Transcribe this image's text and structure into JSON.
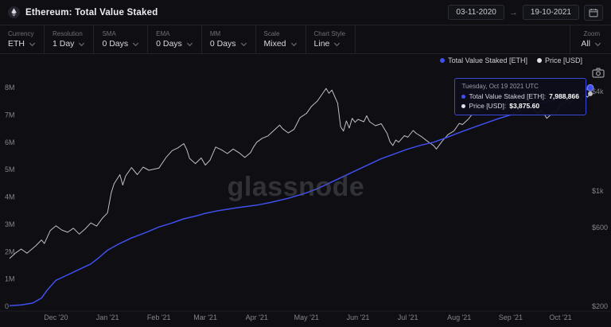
{
  "header": {
    "title": "Ethereum: Total Value Staked",
    "date_start": "03-11-2020",
    "date_end": "19-10-2021",
    "arrow": "→"
  },
  "toolbar": {
    "controls": [
      {
        "label": "Currency",
        "value": "ETH"
      },
      {
        "label": "Resolution",
        "value": "1 Day"
      },
      {
        "label": "SMA",
        "value": "0 Days"
      },
      {
        "label": "EMA",
        "value": "0 Days"
      },
      {
        "label": "MM",
        "value": "0 Days"
      },
      {
        "label": "Scale",
        "value": "Mixed"
      },
      {
        "label": "Chart Style",
        "value": "Line"
      }
    ],
    "zoom": {
      "label": "Zoom",
      "value": "All"
    }
  },
  "legend": [
    {
      "label": "Total Value Staked [ETH]",
      "color": "#4050ee"
    },
    {
      "label": "Price [USD]",
      "color": "#e2e2e8"
    }
  ],
  "tooltip": {
    "date": "Tuesday, Oct 19 2021 UTC",
    "rows": [
      {
        "label": "Total Value Staked [ETH]:",
        "value": "7,988,866",
        "color": "#4050ee"
      },
      {
        "label": "Price [USD]:",
        "value": "$3,875.60",
        "color": "#e2e2e8"
      }
    ]
  },
  "watermark": "glassnode",
  "chart_data": {
    "type": "line",
    "title": "Ethereum: Total Value Staked",
    "x_range": [
      "03-11-2020",
      "19-10-2021"
    ],
    "left_axis": {
      "label": "Total Value Staked [ETH]",
      "scale": "linear",
      "unit": "millions of ETH",
      "range_millions": [
        0,
        8.4
      ],
      "ticks": [
        {
          "label": "0",
          "value": 0
        },
        {
          "label": "1M",
          "value": 1
        },
        {
          "label": "2M",
          "value": 2
        },
        {
          "label": "3M",
          "value": 3
        },
        {
          "label": "4M",
          "value": 4
        },
        {
          "label": "5M",
          "value": 5
        },
        {
          "label": "6M",
          "value": 6
        },
        {
          "label": "7M",
          "value": 7
        },
        {
          "label": "8M",
          "value": 8
        }
      ]
    },
    "right_axis": {
      "label": "Price [USD]",
      "scale": "log",
      "range_usd": [
        200,
        5000
      ],
      "ticks": [
        {
          "label": "$200",
          "value": 200
        },
        {
          "label": "$600",
          "value": 600
        },
        {
          "label": "$1k",
          "value": 1000
        },
        {
          "label": "$4k",
          "value": 4000
        }
      ]
    },
    "x_ticks": [
      {
        "label": "Dec '20",
        "t": 0.08
      },
      {
        "label": "Jan '21",
        "t": 0.1686
      },
      {
        "label": "Feb '21",
        "t": 0.2571
      },
      {
        "label": "Mar '21",
        "t": 0.3371
      },
      {
        "label": "Apr '21",
        "t": 0.4257
      },
      {
        "label": "May '21",
        "t": 0.5114
      },
      {
        "label": "Jun '21",
        "t": 0.6
      },
      {
        "label": "Jul '21",
        "t": 0.6857
      },
      {
        "label": "Aug '21",
        "t": 0.7743
      },
      {
        "label": "Sep '21",
        "t": 0.8629
      },
      {
        "label": "Oct '21",
        "t": 0.9486
      }
    ],
    "series": [
      {
        "name": "Total Value Staked [ETH]",
        "axis": "left",
        "color": "#4050ee",
        "last_value_label": "7,988,866",
        "points": [
          [
            0,
            0.02
          ],
          [
            0.02,
            0.05
          ],
          [
            0.04,
            0.12
          ],
          [
            0.055,
            0.3
          ],
          [
            0.065,
            0.6
          ],
          [
            0.08,
            0.95
          ],
          [
            0.1,
            1.15
          ],
          [
            0.12,
            1.35
          ],
          [
            0.14,
            1.55
          ],
          [
            0.155,
            1.8
          ],
          [
            0.1686,
            2.05
          ],
          [
            0.19,
            2.3
          ],
          [
            0.21,
            2.5
          ],
          [
            0.235,
            2.7
          ],
          [
            0.2571,
            2.9
          ],
          [
            0.28,
            3.05
          ],
          [
            0.3,
            3.2
          ],
          [
            0.32,
            3.3
          ],
          [
            0.3371,
            3.4
          ],
          [
            0.36,
            3.5
          ],
          [
            0.39,
            3.6
          ],
          [
            0.4257,
            3.7
          ],
          [
            0.45,
            3.8
          ],
          [
            0.48,
            3.95
          ],
          [
            0.5114,
            4.15
          ],
          [
            0.53,
            4.3
          ],
          [
            0.55,
            4.5
          ],
          [
            0.57,
            4.7
          ],
          [
            0.585,
            4.85
          ],
          [
            0.6,
            5.0
          ],
          [
            0.62,
            5.2
          ],
          [
            0.64,
            5.4
          ],
          [
            0.66,
            5.55
          ],
          [
            0.6857,
            5.75
          ],
          [
            0.71,
            5.9
          ],
          [
            0.73,
            6.0
          ],
          [
            0.75,
            6.15
          ],
          [
            0.7743,
            6.35
          ],
          [
            0.8,
            6.55
          ],
          [
            0.82,
            6.7
          ],
          [
            0.84,
            6.85
          ],
          [
            0.8629,
            7.0
          ],
          [
            0.88,
            7.15
          ],
          [
            0.9,
            7.3
          ],
          [
            0.92,
            7.45
          ],
          [
            0.9486,
            7.6
          ],
          [
            0.97,
            7.75
          ],
          [
            0.985,
            7.85
          ],
          [
            1.0,
            7.988866
          ]
        ]
      },
      {
        "name": "Price [USD]",
        "axis": "right",
        "color": "#bfbfc6",
        "last_value_label": "$3,875.60",
        "points": [
          [
            0,
            390
          ],
          [
            0.01,
            420
          ],
          [
            0.02,
            445
          ],
          [
            0.03,
            420
          ],
          [
            0.045,
            465
          ],
          [
            0.055,
            505
          ],
          [
            0.06,
            480
          ],
          [
            0.07,
            575
          ],
          [
            0.08,
            615
          ],
          [
            0.09,
            580
          ],
          [
            0.1,
            562
          ],
          [
            0.11,
            595
          ],
          [
            0.12,
            548
          ],
          [
            0.13,
            588
          ],
          [
            0.14,
            640
          ],
          [
            0.15,
            612
          ],
          [
            0.16,
            685
          ],
          [
            0.1686,
            735
          ],
          [
            0.175,
            975
          ],
          [
            0.18,
            1105
          ],
          [
            0.19,
            1255
          ],
          [
            0.195,
            1085
          ],
          [
            0.2,
            1235
          ],
          [
            0.21,
            1385
          ],
          [
            0.22,
            1255
          ],
          [
            0.23,
            1395
          ],
          [
            0.24,
            1335
          ],
          [
            0.2571,
            1375
          ],
          [
            0.27,
            1605
          ],
          [
            0.28,
            1755
          ],
          [
            0.29,
            1825
          ],
          [
            0.3,
            1935
          ],
          [
            0.305,
            1785
          ],
          [
            0.31,
            1575
          ],
          [
            0.32,
            1465
          ],
          [
            0.33,
            1585
          ],
          [
            0.3371,
            1435
          ],
          [
            0.345,
            1535
          ],
          [
            0.355,
            1845
          ],
          [
            0.365,
            1775
          ],
          [
            0.375,
            1685
          ],
          [
            0.385,
            1795
          ],
          [
            0.395,
            1705
          ],
          [
            0.405,
            1595
          ],
          [
            0.415,
            1705
          ],
          [
            0.42,
            1845
          ],
          [
            0.4257,
            1975
          ],
          [
            0.435,
            2085
          ],
          [
            0.445,
            2155
          ],
          [
            0.455,
            2325
          ],
          [
            0.465,
            2505
          ],
          [
            0.47,
            2385
          ],
          [
            0.48,
            2245
          ],
          [
            0.49,
            2365
          ],
          [
            0.5,
            2775
          ],
          [
            0.5114,
            2955
          ],
          [
            0.52,
            3255
          ],
          [
            0.53,
            3505
          ],
          [
            0.54,
            3935
          ],
          [
            0.545,
            4175
          ],
          [
            0.55,
            3905
          ],
          [
            0.555,
            4085
          ],
          [
            0.56,
            3725
          ],
          [
            0.565,
            3405
          ],
          [
            0.57,
            2455
          ],
          [
            0.575,
            2305
          ],
          [
            0.58,
            2655
          ],
          [
            0.585,
            2405
          ],
          [
            0.59,
            2755
          ],
          [
            0.595,
            2605
          ],
          [
            0.6,
            2715
          ],
          [
            0.61,
            2625
          ],
          [
            0.615,
            2855
          ],
          [
            0.62,
            2625
          ],
          [
            0.63,
            2485
          ],
          [
            0.64,
            2555
          ],
          [
            0.65,
            2235
          ],
          [
            0.655,
            1985
          ],
          [
            0.66,
            1885
          ],
          [
            0.665,
            2035
          ],
          [
            0.67,
            1975
          ],
          [
            0.68,
            2165
          ],
          [
            0.6857,
            2115
          ],
          [
            0.695,
            2325
          ],
          [
            0.7,
            2235
          ],
          [
            0.71,
            2125
          ],
          [
            0.72,
            1995
          ],
          [
            0.73,
            1885
          ],
          [
            0.735,
            1795
          ],
          [
            0.745,
            2005
          ],
          [
            0.755,
            2195
          ],
          [
            0.765,
            2305
          ],
          [
            0.7743,
            2565
          ],
          [
            0.78,
            2525
          ],
          [
            0.79,
            2725
          ],
          [
            0.8,
            3015
          ],
          [
            0.81,
            3165
          ],
          [
            0.815,
            3325
          ],
          [
            0.82,
            3245
          ],
          [
            0.83,
            3235
          ],
          [
            0.84,
            3435
          ],
          [
            0.85,
            3275
          ],
          [
            0.8629,
            3795
          ],
          [
            0.868,
            3945
          ],
          [
            0.875,
            3435
          ],
          [
            0.88,
            3295
          ],
          [
            0.885,
            3445
          ],
          [
            0.89,
            3615
          ],
          [
            0.895,
            3485
          ],
          [
            0.9,
            3405
          ],
          [
            0.905,
            3025
          ],
          [
            0.91,
            2955
          ],
          [
            0.915,
            3085
          ],
          [
            0.92,
            2935
          ],
          [
            0.925,
            2755
          ],
          [
            0.93,
            2855
          ],
          [
            0.935,
            3015
          ],
          [
            0.94,
            2965
          ],
          [
            0.9486,
            3315
          ],
          [
            0.955,
            3395
          ],
          [
            0.96,
            3585
          ],
          [
            0.965,
            3425
          ],
          [
            0.97,
            3555
          ],
          [
            0.975,
            3605
          ],
          [
            0.98,
            3765
          ],
          [
            0.985,
            3585
          ],
          [
            0.99,
            3855
          ],
          [
            0.995,
            3695
          ],
          [
            1.0,
            3875.6
          ]
        ]
      }
    ]
  }
}
